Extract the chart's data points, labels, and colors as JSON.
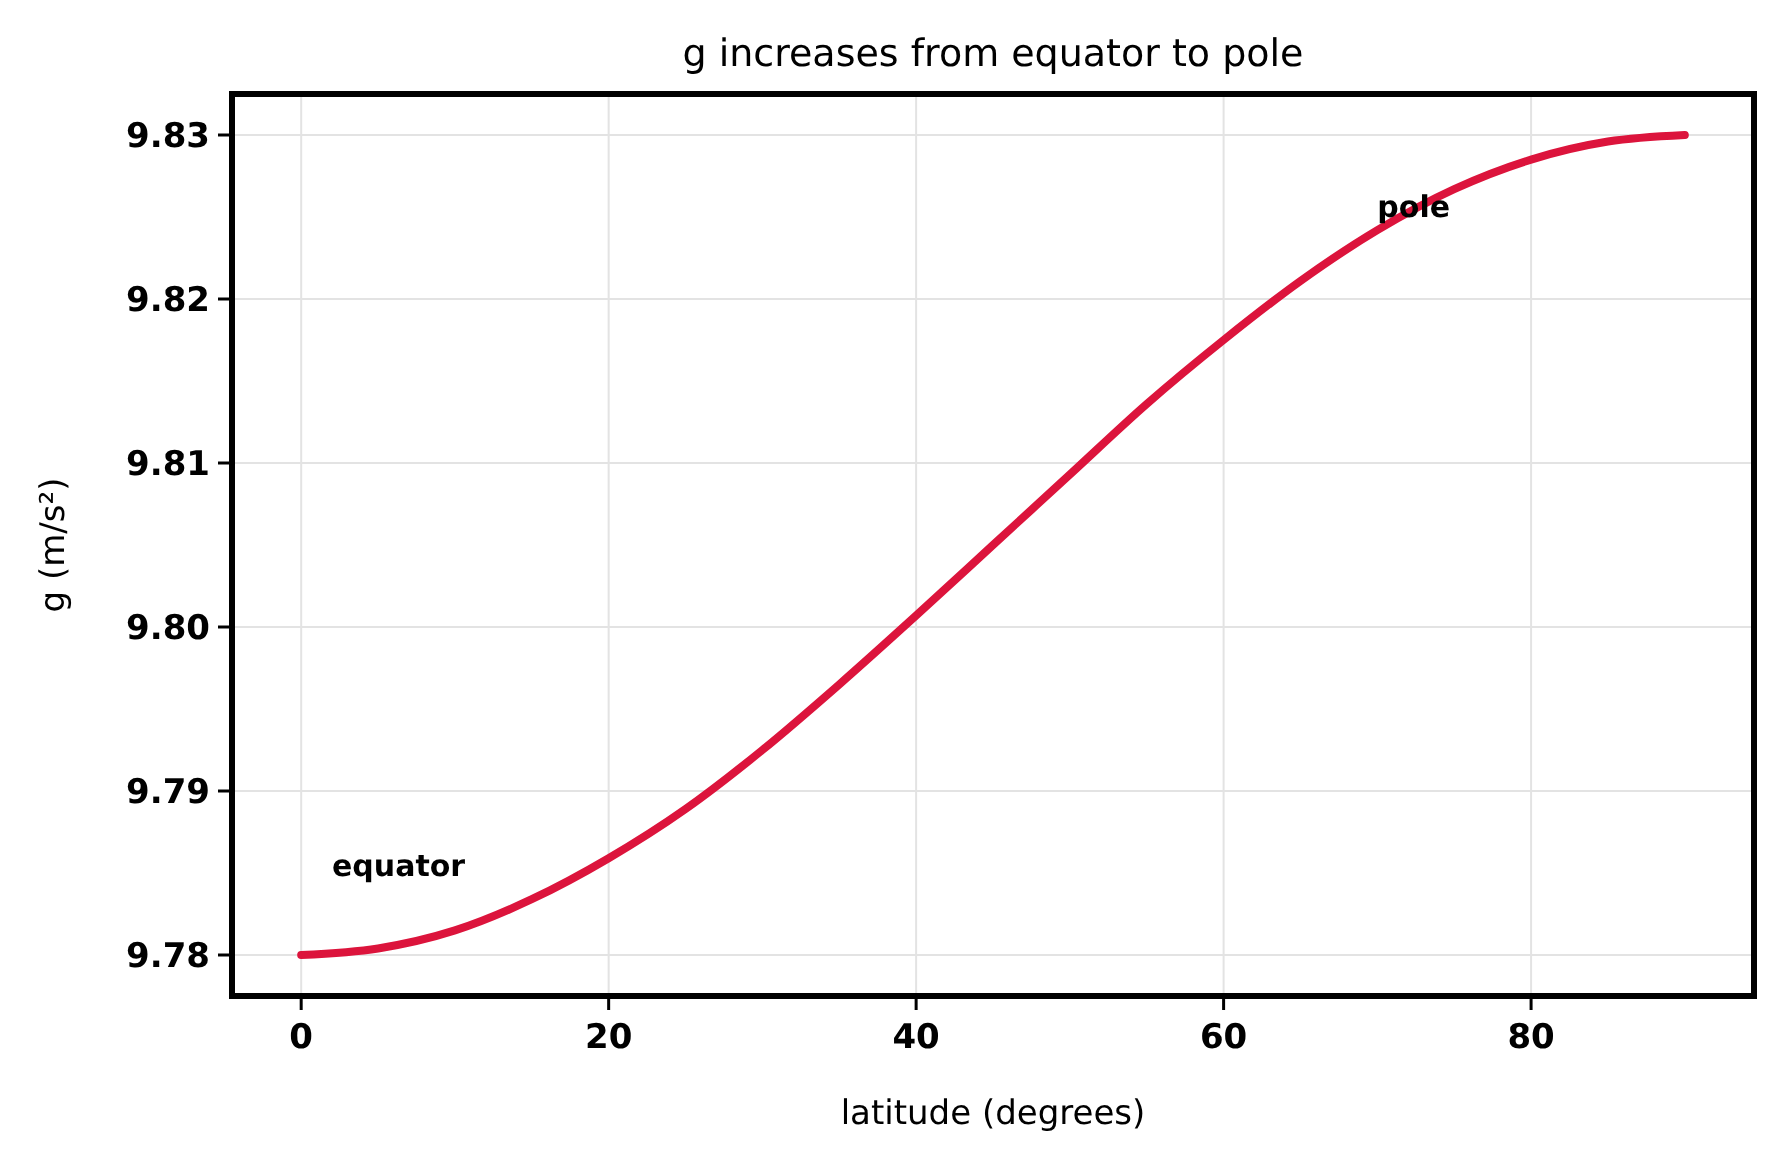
{
  "chart_data": {
    "type": "line",
    "title": "g increases from equator to pole",
    "xlabel": "latitude (degrees)",
    "ylabel": "g (m/s²)",
    "x": [
      0,
      5,
      10,
      15,
      20,
      25,
      30,
      35,
      40,
      45,
      50,
      55,
      60,
      65,
      70,
      75,
      80,
      85,
      90
    ],
    "series": [
      {
        "color": "#dc143c",
        "values": [
          9.78,
          9.7804,
          9.7815,
          9.7834,
          9.7859,
          9.7889,
          9.7925,
          9.7965,
          9.8007,
          9.805,
          9.8093,
          9.8136,
          9.8175,
          9.8211,
          9.8242,
          9.8267,
          9.8285,
          9.8296,
          9.83
        ]
      }
    ],
    "xlim": [
      -4.5,
      94.5
    ],
    "xticks": [
      0,
      20,
      40,
      60,
      80
    ],
    "ylim": [
      9.7775,
      9.8325
    ],
    "yticks": [
      9.78,
      9.79,
      {
        "value": 9.8,
        "label": "9.80"
      },
      9.81,
      9.82,
      9.83
    ],
    "annotations": [
      "equator",
      {
        "text": "pole",
        "x": 70,
        "y": 9.825
      }
    ],
    "grid": true,
    "line_style": "solid"
  }
}
